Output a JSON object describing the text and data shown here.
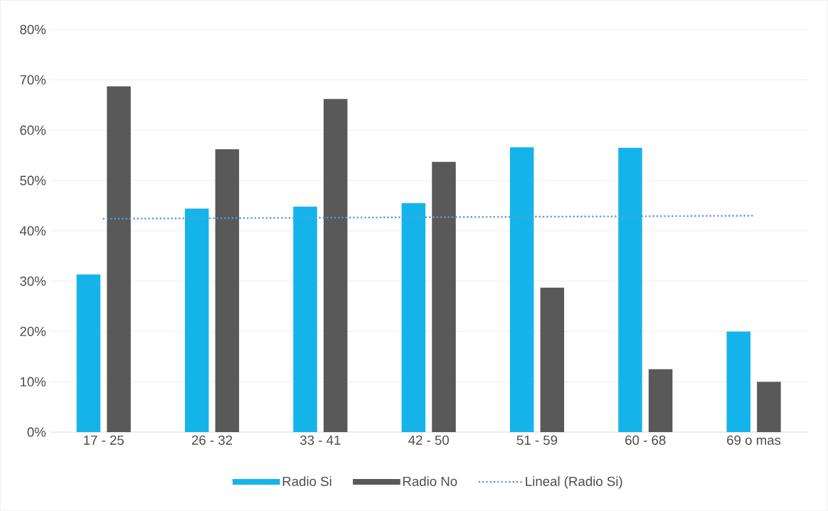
{
  "chart_data": {
    "type": "bar",
    "categories": [
      "17 - 25",
      "26 - 32",
      "33 - 41",
      "42 - 50",
      "51 - 59",
      "60 - 68",
      "69 o mas"
    ],
    "series": [
      {
        "name": "Radio Si",
        "color": "#14b4eb",
        "values": [
          31.3,
          44.4,
          44.8,
          45.5,
          56.6,
          56.5,
          20.0
        ]
      },
      {
        "name": "Radio No",
        "color": "#595959",
        "values": [
          68.7,
          56.2,
          66.2,
          53.7,
          28.7,
          12.5,
          10.0
        ]
      },
      {
        "name": "Lineal (Radio Si)",
        "type": "line",
        "line_style": "dotted",
        "color": "#5b9bd5",
        "values": [
          42.4,
          42.5,
          42.6,
          42.7,
          42.8,
          42.9,
          43.0
        ]
      }
    ],
    "ylim": [
      0,
      80
    ],
    "yticks": [
      {
        "value": 0,
        "label": "0%"
      },
      {
        "value": 10,
        "label": "10%"
      },
      {
        "value": 20,
        "label": "20%"
      },
      {
        "value": 30,
        "label": "30%"
      },
      {
        "value": 40,
        "label": "40%"
      },
      {
        "value": 50,
        "label": "50%"
      },
      {
        "value": 60,
        "label": "60%"
      },
      {
        "value": 70,
        "label": "70%"
      },
      {
        "value": 80,
        "label": "80%"
      }
    ],
    "grid": "y",
    "legend": "bottom"
  }
}
